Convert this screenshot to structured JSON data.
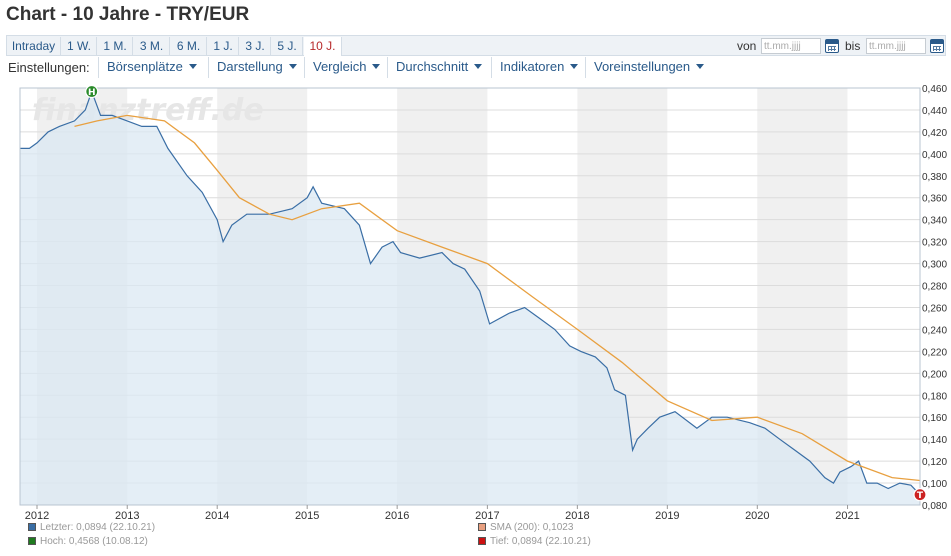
{
  "title": "Chart - 10 Jahre - TRY/EUR",
  "ranges": [
    {
      "label": "Intraday",
      "active": false
    },
    {
      "label": "1 W.",
      "active": false
    },
    {
      "label": "1 M.",
      "active": false
    },
    {
      "label": "3 M.",
      "active": false
    },
    {
      "label": "6 M.",
      "active": false
    },
    {
      "label": "1 J.",
      "active": false
    },
    {
      "label": "3 J.",
      "active": false
    },
    {
      "label": "5 J.",
      "active": false
    },
    {
      "label": "10 J.",
      "active": true
    }
  ],
  "date_range": {
    "von_label": "von",
    "bis_label": "bis",
    "von_placeholder": "tt.mm.jjjj",
    "bis_placeholder": "tt.mm.jjjj",
    "icon": "calendar-icon"
  },
  "settings": {
    "label": "Einstellungen:",
    "menus": [
      "Börsenplätze",
      "Darstellung",
      "Vergleich",
      "Durchschnitt",
      "Indikatoren",
      "Voreinstellungen"
    ]
  },
  "watermark": "finanztreff.de",
  "chart_data": {
    "type": "line",
    "x_axis": {
      "type": "date",
      "range": [
        "2011-10-24",
        "2021-10-22"
      ],
      "ticks": [
        "2012",
        "2013",
        "2014",
        "2015",
        "2016",
        "2017",
        "2018",
        "2019",
        "2020",
        "2021"
      ]
    },
    "y_axis": {
      "position": "right",
      "range": [
        0.08,
        0.46
      ],
      "ticks": [
        "0,080",
        "0,100",
        "0,120",
        "0,140",
        "0,160",
        "0,180",
        "0,200",
        "0,220",
        "0,240",
        "0,260",
        "0,280",
        "0,300",
        "0,320",
        "0,340",
        "0,360",
        "0,380",
        "0,400",
        "0,420",
        "0,440",
        "0,460"
      ]
    },
    "grid": true,
    "series": [
      {
        "name": "Letzter",
        "color": "#3a6ea5",
        "fill": "#dbe8f3",
        "points": [
          [
            "2011-10-24",
            0.405
          ],
          [
            "2011-12-01",
            0.405
          ],
          [
            "2012-01-01",
            0.41
          ],
          [
            "2012-02-15",
            0.42
          ],
          [
            "2012-04-01",
            0.425
          ],
          [
            "2012-06-01",
            0.43
          ],
          [
            "2012-07-15",
            0.44
          ],
          [
            "2012-08-10",
            0.4568
          ],
          [
            "2012-09-15",
            0.435
          ],
          [
            "2012-11-01",
            0.435
          ],
          [
            "2013-01-01",
            0.43
          ],
          [
            "2013-03-01",
            0.425
          ],
          [
            "2013-05-01",
            0.425
          ],
          [
            "2013-06-15",
            0.405
          ],
          [
            "2013-09-01",
            0.38
          ],
          [
            "2013-11-01",
            0.365
          ],
          [
            "2014-01-01",
            0.34
          ],
          [
            "2014-01-25",
            0.32
          ],
          [
            "2014-03-01",
            0.335
          ],
          [
            "2014-05-01",
            0.345
          ],
          [
            "2014-08-01",
            0.345
          ],
          [
            "2014-11-01",
            0.35
          ],
          [
            "2015-01-01",
            0.36
          ],
          [
            "2015-01-25",
            0.37
          ],
          [
            "2015-03-01",
            0.355
          ],
          [
            "2015-06-01",
            0.35
          ],
          [
            "2015-08-01",
            0.335
          ],
          [
            "2015-09-15",
            0.3
          ],
          [
            "2015-11-01",
            0.315
          ],
          [
            "2015-12-15",
            0.32
          ],
          [
            "2016-01-15",
            0.31
          ],
          [
            "2016-04-01",
            0.305
          ],
          [
            "2016-07-01",
            0.31
          ],
          [
            "2016-08-15",
            0.3
          ],
          [
            "2016-10-01",
            0.295
          ],
          [
            "2016-12-01",
            0.275
          ],
          [
            "2017-01-10",
            0.245
          ],
          [
            "2017-04-01",
            0.255
          ],
          [
            "2017-06-01",
            0.26
          ],
          [
            "2017-08-01",
            0.25
          ],
          [
            "2017-10-01",
            0.24
          ],
          [
            "2017-12-01",
            0.225
          ],
          [
            "2018-01-15",
            0.22
          ],
          [
            "2018-03-15",
            0.215
          ],
          [
            "2018-05-01",
            0.205
          ],
          [
            "2018-06-01",
            0.185
          ],
          [
            "2018-07-15",
            0.18
          ],
          [
            "2018-08-13",
            0.13
          ],
          [
            "2018-09-01",
            0.14
          ],
          [
            "2018-10-15",
            0.15
          ],
          [
            "2018-12-01",
            0.16
          ],
          [
            "2019-02-01",
            0.165
          ],
          [
            "2019-05-01",
            0.15
          ],
          [
            "2019-07-01",
            0.16
          ],
          [
            "2019-09-01",
            0.16
          ],
          [
            "2019-12-01",
            0.155
          ],
          [
            "2020-02-01",
            0.15
          ],
          [
            "2020-04-01",
            0.14
          ],
          [
            "2020-06-01",
            0.13
          ],
          [
            "2020-08-01",
            0.12
          ],
          [
            "2020-10-01",
            0.105
          ],
          [
            "2020-11-05",
            0.1
          ],
          [
            "2020-12-01",
            0.11
          ],
          [
            "2021-01-15",
            0.115
          ],
          [
            "2021-02-15",
            0.12
          ],
          [
            "2021-03-20",
            0.1
          ],
          [
            "2021-05-01",
            0.1
          ],
          [
            "2021-06-15",
            0.095
          ],
          [
            "2021-08-01",
            0.1
          ],
          [
            "2021-09-15",
            0.098
          ],
          [
            "2021-10-22",
            0.0894
          ]
        ]
      },
      {
        "name": "SMA (200)",
        "color": "#e8a040",
        "points": [
          [
            "2012-06-01",
            0.425
          ],
          [
            "2012-09-01",
            0.43
          ],
          [
            "2013-01-01",
            0.435
          ],
          [
            "2013-06-01",
            0.43
          ],
          [
            "2013-10-01",
            0.41
          ],
          [
            "2014-01-01",
            0.385
          ],
          [
            "2014-04-01",
            0.36
          ],
          [
            "2014-08-01",
            0.345
          ],
          [
            "2014-11-01",
            0.34
          ],
          [
            "2015-03-01",
            0.35
          ],
          [
            "2015-08-01",
            0.355
          ],
          [
            "2016-01-01",
            0.33
          ],
          [
            "2016-07-01",
            0.315
          ],
          [
            "2017-01-01",
            0.3
          ],
          [
            "2017-07-01",
            0.27
          ],
          [
            "2018-01-01",
            0.24
          ],
          [
            "2018-07-01",
            0.21
          ],
          [
            "2019-01-01",
            0.175
          ],
          [
            "2019-07-01",
            0.157
          ],
          [
            "2020-01-01",
            0.16
          ],
          [
            "2020-07-01",
            0.145
          ],
          [
            "2021-01-01",
            0.12
          ],
          [
            "2021-07-01",
            0.105
          ],
          [
            "2021-10-22",
            0.1023
          ]
        ]
      }
    ],
    "markers": [
      {
        "label": "H",
        "date": "2012-08-10",
        "value": 0.4568,
        "color": "#2a8a2a"
      },
      {
        "label": "T",
        "date": "2021-10-22",
        "value": 0.0894,
        "color": "#cc2222"
      }
    ],
    "legend": {
      "placement": "bottom-left",
      "entries": [
        {
          "text": "Letzter: 0,0894 (22.10.21)",
          "color": "#3a6ea5"
        },
        {
          "text": "Hoch: 0,4568 (10.08.12)",
          "color": "#1f7a1f"
        },
        {
          "text": "SMA (200): 0,1023",
          "color": "#e8a080"
        },
        {
          "text": "Tief: 0,0894 (22.10.21)",
          "color": "#cc1111"
        }
      ]
    }
  }
}
